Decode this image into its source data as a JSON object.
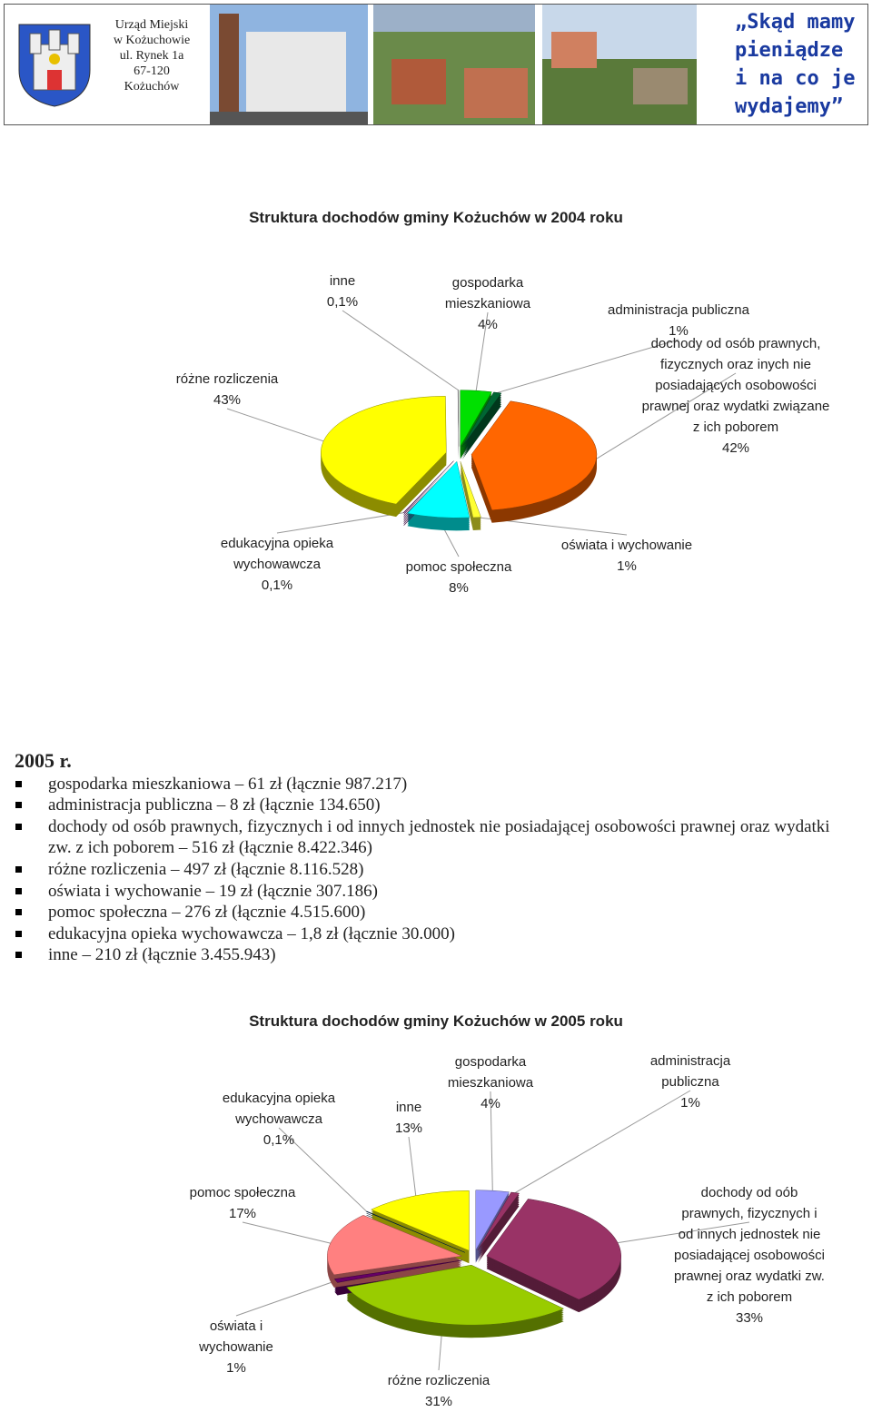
{
  "header": {
    "office": [
      "Urząd Miejski",
      "w Kożuchowie",
      "ul. Rynek 1a",
      "67-120",
      "Kożuchów"
    ],
    "title": [
      "„Skąd mamy",
      "pieniądze",
      "i na co je",
      "wydajemy”"
    ]
  },
  "list": {
    "heading": "2005 r.",
    "items": [
      "gospodarka mieszkaniowa – 61 zł (łącznie 987.217)",
      "administracja publiczna – 8 zł (łącznie 134.650)",
      "dochody od osób prawnych, fizycznych i od innych jednostek nie posiadającej osobowości prawnej oraz wydatki zw. z ich poborem – 516 zł (łącznie 8.422.346)",
      "różne rozliczenia – 497 zł (łącznie 8.116.528)",
      "oświata i wychowanie –  19 zł (łącznie 307.186)",
      "pomoc społeczna – 276 zł (łącznie 4.515.600)",
      "edukacyjna opieka wychowawcza – 1,8 zł (łącznie 30.000)",
      "inne – 210 zł (łącznie 3.455.943)"
    ]
  },
  "chart_data": [
    {
      "type": "pie",
      "title": "Struktura dochodów gminy Kożuchów w 2004 roku",
      "categories": [
        "gospodarka mieszkaniowa",
        "administracja publiczna",
        "dochody od osób prawnych, fizycznych oraz inych nie posiadających osobowości prawnej oraz wydatki związane z ich poborem",
        "oświata i wychowanie",
        "pomoc społeczna",
        "edukacyjna opieka wychowawcza",
        "różne rozliczenia",
        "inne"
      ],
      "values": [
        4,
        1,
        42,
        1,
        8,
        0.1,
        43,
        0.1
      ],
      "value_labels": [
        "4%",
        "1%",
        "42%",
        "1%",
        "8%",
        "0,1%",
        "43%",
        "0,1%"
      ],
      "colors": [
        "#00e000",
        "#006633",
        "#ff6600",
        "#ffff33",
        "#00ffff",
        "#660066",
        "#ffff00",
        "#cccccc"
      ]
    },
    {
      "type": "pie",
      "title": "Struktura dochodów gminy Kożuchów w 2005 roku",
      "categories": [
        "gospodarka mieszkaniowa",
        "administracja publiczna",
        "dochody od oób prawnych, fizycznych i od innych jednostek nie posiadającej osobowości prawnej oraz wydatki zw. z ich poborem",
        "różne rozliczenia",
        "oświata i wychowanie",
        "pomoc społeczna",
        "edukacyjna opieka wychowawcza",
        "inne"
      ],
      "values": [
        4,
        1,
        33,
        31,
        1,
        17,
        0.1,
        13
      ],
      "value_labels": [
        "4%",
        "1%",
        "33%",
        "31%",
        "1%",
        "17%",
        "0,1%",
        "13%"
      ],
      "colors": [
        "#9999ff",
        "#993366",
        "#993366",
        "#99cc00",
        "#660066",
        "#ff8080",
        "#003366",
        "#ffff00"
      ]
    }
  ]
}
